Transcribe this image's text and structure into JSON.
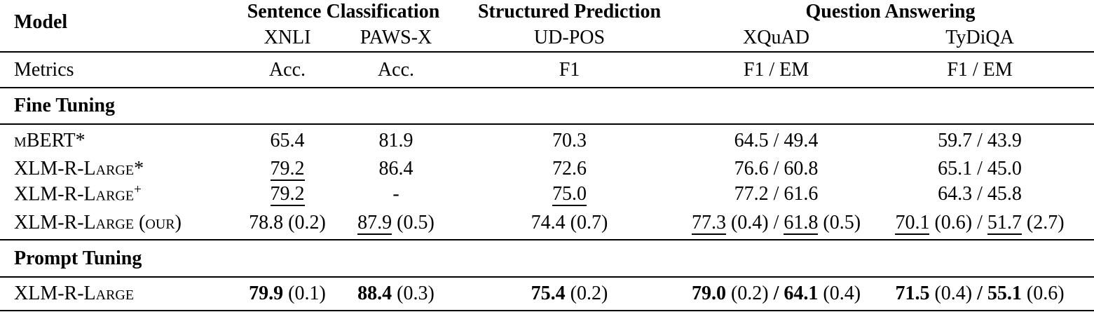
{
  "colors": {
    "text": "#000000",
    "background": "#ffffff",
    "rule": "#000000"
  },
  "table": {
    "header": {
      "model_label": "Model",
      "groups": [
        {
          "label": "Sentence Classification",
          "tasks": [
            "XNLI",
            "PAWS-X"
          ]
        },
        {
          "label": "Structured Prediction",
          "tasks": [
            "UD-POS"
          ]
        },
        {
          "label": "Question Answering",
          "tasks": [
            "XQuAD",
            "TyDiQA"
          ]
        }
      ]
    },
    "metrics": {
      "label": "Metrics",
      "values": [
        "Acc.",
        "Acc.",
        "F1",
        "F1 / EM",
        "F1 / EM"
      ]
    },
    "sections": [
      {
        "title": "Fine Tuning",
        "rows": [
          {
            "model": [
              {
                "t": "mBERT*"
              }
            ],
            "cells": [
              [
                {
                  "t": "65.4"
                }
              ],
              [
                {
                  "t": "81.9"
                }
              ],
              [
                {
                  "t": "70.3"
                }
              ],
              [
                {
                  "t": "64.5 / 49.4"
                }
              ],
              [
                {
                  "t": "59.7 / 43.9"
                }
              ]
            ]
          },
          {
            "model": [
              {
                "t": "XLM-R-Large*"
              }
            ],
            "cells": [
              [
                {
                  "t": "79.2",
                  "u": true
                }
              ],
              [
                {
                  "t": "86.4"
                }
              ],
              [
                {
                  "t": "72.6"
                }
              ],
              [
                {
                  "t": "76.6 / 60.8"
                }
              ],
              [
                {
                  "t": "65.1 / 45.0"
                }
              ]
            ]
          },
          {
            "model": [
              {
                "t": "XLM-R-Large"
              },
              {
                "t": "+",
                "sup": true
              }
            ],
            "cells": [
              [
                {
                  "t": "79.2",
                  "u": true
                }
              ],
              [
                {
                  "t": "-"
                }
              ],
              [
                {
                  "t": "75.0",
                  "u": true
                }
              ],
              [
                {
                  "t": "77.2 / 61.6"
                }
              ],
              [
                {
                  "t": "64.3 / 45.8"
                }
              ]
            ]
          },
          {
            "model": [
              {
                "t": "XLM-R-Large (our)"
              }
            ],
            "cells": [
              [
                {
                  "t": "78.8 (0.2)"
                }
              ],
              [
                {
                  "t": "87.9",
                  "u": true
                },
                {
                  "t": " (0.5)"
                }
              ],
              [
                {
                  "t": "74.4 (0.7)"
                }
              ],
              [
                {
                  "t": "77.3",
                  "u": true
                },
                {
                  "t": " (0.4) / "
                },
                {
                  "t": "61.8",
                  "u": true
                },
                {
                  "t": " (0.5)"
                }
              ],
              [
                {
                  "t": "70.1",
                  "u": true
                },
                {
                  "t": " (0.6) / "
                },
                {
                  "t": "51.7",
                  "u": true
                },
                {
                  "t": " (2.7)"
                }
              ]
            ]
          }
        ]
      },
      {
        "title": "Prompt Tuning",
        "rows": [
          {
            "model": [
              {
                "t": "XLM-R-Large"
              }
            ],
            "cells": [
              [
                {
                  "t": "79.9",
                  "b": true
                },
                {
                  "t": " (0.1)"
                }
              ],
              [
                {
                  "t": "88.4",
                  "b": true
                },
                {
                  "t": " (0.3)"
                }
              ],
              [
                {
                  "t": "75.4",
                  "b": true
                },
                {
                  "t": " (0.2)"
                }
              ],
              [
                {
                  "t": "79.0",
                  "b": true
                },
                {
                  "t": " (0.2) "
                },
                {
                  "t": "/ 64.1",
                  "b": true
                },
                {
                  "t": " (0.4)"
                }
              ],
              [
                {
                  "t": "71.5",
                  "b": true
                },
                {
                  "t": " (0.4) "
                },
                {
                  "t": "/ 55.1",
                  "b": true
                },
                {
                  "t": " (0.6)"
                }
              ]
            ]
          }
        ]
      }
    ]
  }
}
